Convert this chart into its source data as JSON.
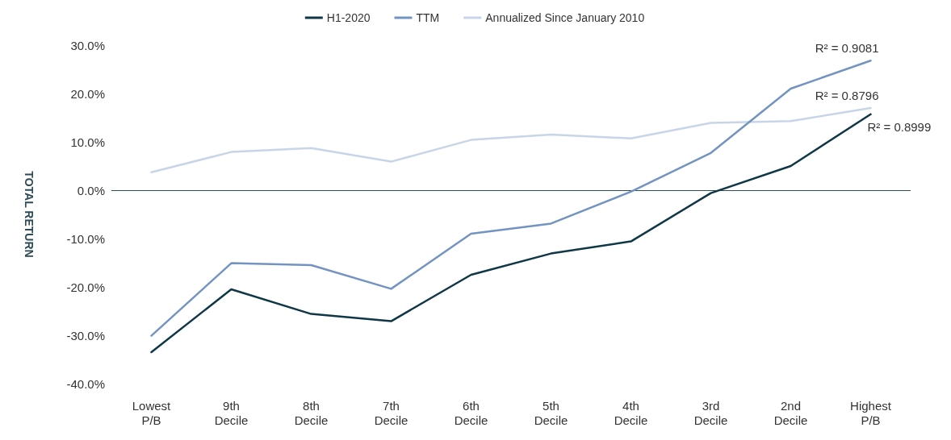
{
  "chart_data": {
    "type": "line",
    "ylabel": "TOTAL RETURN",
    "categories": [
      "Lowest\nP/B",
      "9th\nDecile",
      "8th\nDecile",
      "7th\nDecile",
      "6th\nDecile",
      "5th\nDecile",
      "4th\nDecile",
      "3rd\nDecile",
      "2nd\nDecile",
      "Highest\nP/B"
    ],
    "series": [
      {
        "name": "H1-2020",
        "color": "#0f3747",
        "values": [
          -33.5,
          -20.5,
          -25.6,
          -27.1,
          -17.5,
          -13.1,
          -10.6,
          -0.6,
          5.0,
          15.7
        ]
      },
      {
        "name": "TTM",
        "color": "#7393c0",
        "values": [
          -30.1,
          -15.1,
          -15.5,
          -20.4,
          -9.0,
          -6.9,
          -0.3,
          7.7,
          21.0,
          26.8
        ]
      },
      {
        "name": "Annualized Since January 2010",
        "color": "#c8d5e8",
        "values": [
          3.7,
          7.9,
          8.7,
          5.9,
          10.4,
          11.5,
          10.7,
          13.9,
          14.3,
          17.0
        ]
      }
    ],
    "ylim": [
      -40,
      30
    ],
    "yticks": [
      {
        "value": -40,
        "label": "-40.0%"
      },
      {
        "value": -30,
        "label": "-30.0%"
      },
      {
        "value": -20,
        "label": "-20.0%"
      },
      {
        "value": -10,
        "label": "-10.0%"
      },
      {
        "value": 0,
        "label": "0.0%"
      },
      {
        "value": 10,
        "label": "10.0%"
      },
      {
        "value": 20,
        "label": "20.0%"
      },
      {
        "value": 30,
        "label": "30.0%"
      }
    ],
    "ref_lines": [
      {
        "axis": "y",
        "value": 0,
        "color": "#2d4a57"
      }
    ],
    "annotations": [
      {
        "text": "R² = 0.9081",
        "x": "Highest\nP/B",
        "y": 26.8
      },
      {
        "text": "R² = 0.8796",
        "x": "Highest\nP/B",
        "y": 17.0
      },
      {
        "text": "R² = 0.8999",
        "x": "Highest\nP/B",
        "y": 15.7
      }
    ],
    "grid": false,
    "legend": "top",
    "marker": "none",
    "line_style": "solid"
  }
}
